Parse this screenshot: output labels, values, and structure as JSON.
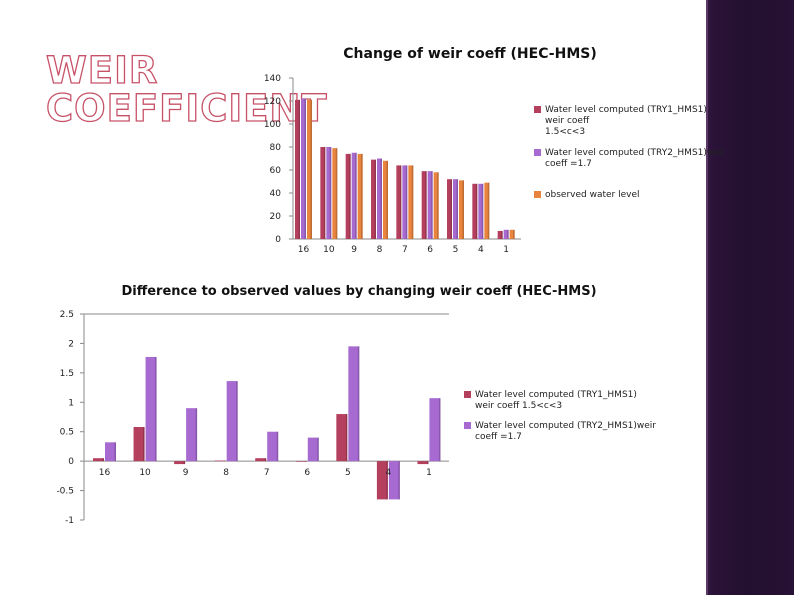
{
  "slide": {
    "title_line1": "WEIR",
    "title_line2": "COEFFICIENT"
  },
  "colors": {
    "title_outline": "#c75268",
    "band": "#2a1236"
  },
  "chart_data": [
    {
      "type": "bar",
      "title": "Change of weir coeff (HEC-HMS)",
      "categories": [
        "16",
        "10",
        "9",
        "8",
        "7",
        "6",
        "5",
        "4",
        "1"
      ],
      "ylim": [
        0,
        140
      ],
      "yticks": [
        0,
        20,
        40,
        60,
        80,
        100,
        120,
        140
      ],
      "grid": false,
      "legend_position": "right",
      "series": [
        {
          "name": "Water level computed (TRY1_HMS1) weir coeff 1.5<c<3",
          "color": "#b5405e",
          "values": [
            121,
            80,
            74,
            69,
            64,
            59,
            52,
            48,
            7
          ]
        },
        {
          "name": "Water level computed (TRY2_HMS1)weir coeff =1.7",
          "color": "#a66ad0",
          "values": [
            122,
            80,
            75,
            70,
            64,
            59,
            52,
            48,
            8
          ]
        },
        {
          "name": "observed water level",
          "color": "#e8843e",
          "values": [
            121,
            79,
            74,
            68,
            64,
            58,
            51,
            49,
            8
          ]
        }
      ]
    },
    {
      "type": "bar",
      "title": "Difference to observed values by changing weir coeff (HEC-HMS)",
      "categories": [
        "16",
        "10",
        "9",
        "8",
        "7",
        "6",
        "5",
        "4",
        "1"
      ],
      "ylim": [
        -1,
        2.5
      ],
      "yticks": [
        -1,
        -0.5,
        0,
        0.5,
        1,
        1.5,
        2,
        2.5
      ],
      "grid": false,
      "legend_position": "right",
      "series": [
        {
          "name": "Water level computed (TRY1_HMS1) weir coeff 1.5<c<3",
          "color": "#b5405e",
          "values": [
            0.05,
            0.58,
            -0.05,
            0.01,
            0.05,
            0.0,
            0.8,
            -0.65,
            -0.05
          ]
        },
        {
          "name": "Water level computed (TRY2_HMS1)weir coeff =1.7",
          "color": "#a66ad0",
          "values": [
            0.32,
            1.77,
            0.9,
            1.36,
            0.5,
            0.4,
            1.95,
            -0.65,
            1.07
          ]
        }
      ]
    }
  ]
}
